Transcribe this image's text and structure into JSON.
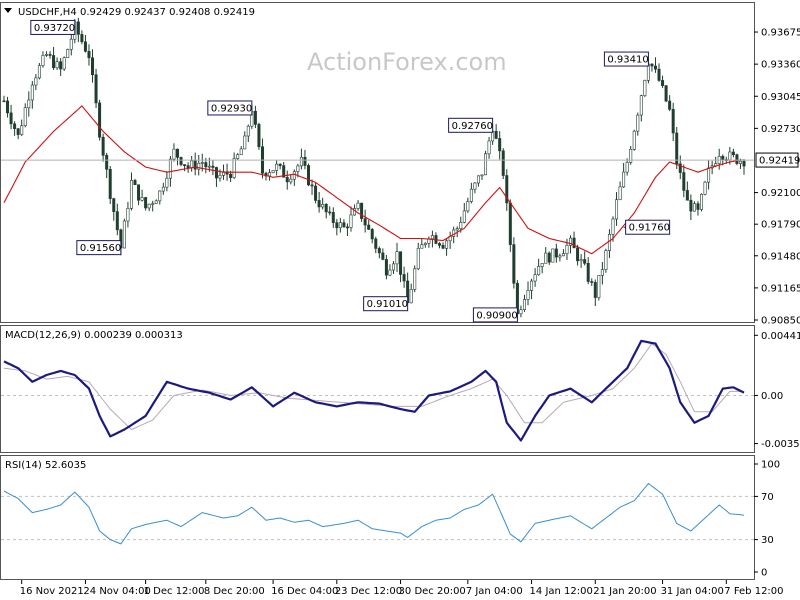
{
  "chart_data": {
    "type": "candlestick",
    "symbol": "USDCHF,H4",
    "ohlc_text": "0.92429 0.92437 0.92408 0.92419",
    "watermark": "ActionForex.com",
    "last_price": 0.92419,
    "last_price_label": "0.92419",
    "price_axis": {
      "range": [
        0.9085,
        0.9395
      ],
      "ticks": [
        {
          "v": 0.93675,
          "label": "0.93675"
        },
        {
          "v": 0.9336,
          "label": "0.93360"
        },
        {
          "v": 0.93045,
          "label": "0.93045"
        },
        {
          "v": 0.9273,
          "label": "0.92730"
        },
        {
          "v": 0.921,
          "label": "0.92100"
        },
        {
          "v": 0.9179,
          "label": "0.91790"
        },
        {
          "v": 0.9148,
          "label": "0.91480"
        },
        {
          "v": 0.91165,
          "label": "0.91165"
        },
        {
          "v": 0.9085,
          "label": "0.90850"
        }
      ]
    },
    "annotations": [
      {
        "label": "0.93720",
        "v": 0.9372,
        "bar": 20,
        "side": "left"
      },
      {
        "label": "0.91560",
        "v": 0.9156,
        "bar": 33,
        "side": "left"
      },
      {
        "label": "0.92930",
        "v": 0.9293,
        "bar": 70,
        "side": "left"
      },
      {
        "label": "0.91010",
        "v": 0.9101,
        "bar": 114,
        "side": "left"
      },
      {
        "label": "0.92760",
        "v": 0.9276,
        "bar": 138,
        "side": "left"
      },
      {
        "label": "0.90900",
        "v": 0.909,
        "bar": 145,
        "side": "left"
      },
      {
        "label": "0.93410",
        "v": 0.9341,
        "bar": 182,
        "side": "left"
      },
      {
        "label": "0.91760",
        "v": 0.9176,
        "bar": 175,
        "side": "right"
      }
    ],
    "price_path": [
      [
        0,
        0.93
      ],
      [
        4,
        0.9265
      ],
      [
        8,
        0.932
      ],
      [
        12,
        0.9345
      ],
      [
        16,
        0.933
      ],
      [
        20,
        0.9372
      ],
      [
        24,
        0.9345
      ],
      [
        27,
        0.927
      ],
      [
        30,
        0.921
      ],
      [
        33,
        0.9156
      ],
      [
        36,
        0.922
      ],
      [
        40,
        0.9195
      ],
      [
        44,
        0.921
      ],
      [
        48,
        0.925
      ],
      [
        52,
        0.9235
      ],
      [
        56,
        0.924
      ],
      [
        60,
        0.9225
      ],
      [
        64,
        0.923
      ],
      [
        68,
        0.926
      ],
      [
        70,
        0.9293
      ],
      [
        73,
        0.923
      ],
      [
        77,
        0.9235
      ],
      [
        80,
        0.9225
      ],
      [
        84,
        0.924
      ],
      [
        88,
        0.9205
      ],
      [
        92,
        0.9185
      ],
      [
        96,
        0.9175
      ],
      [
        100,
        0.9195
      ],
      [
        104,
        0.9165
      ],
      [
        108,
        0.9135
      ],
      [
        111,
        0.915
      ],
      [
        114,
        0.9101
      ],
      [
        117,
        0.915
      ],
      [
        120,
        0.917
      ],
      [
        124,
        0.916
      ],
      [
        128,
        0.9175
      ],
      [
        132,
        0.921
      ],
      [
        135,
        0.923
      ],
      [
        138,
        0.9276
      ],
      [
        141,
        0.923
      ],
      [
        143,
        0.916
      ],
      [
        145,
        0.909
      ],
      [
        148,
        0.912
      ],
      [
        152,
        0.9145
      ],
      [
        156,
        0.915
      ],
      [
        160,
        0.916
      ],
      [
        164,
        0.9135
      ],
      [
        167,
        0.911
      ],
      [
        170,
        0.915
      ],
      [
        173,
        0.92
      ],
      [
        176,
        0.924
      ],
      [
        179,
        0.929
      ],
      [
        182,
        0.9341
      ],
      [
        185,
        0.932
      ],
      [
        188,
        0.929
      ],
      [
        190,
        0.924
      ],
      [
        193,
        0.92
      ],
      [
        196,
        0.919
      ],
      [
        199,
        0.923
      ],
      [
        202,
        0.925
      ],
      [
        205,
        0.9245
      ],
      [
        208,
        0.9242
      ]
    ],
    "ma_path": [
      [
        0,
        0.92
      ],
      [
        6,
        0.924
      ],
      [
        14,
        0.927
      ],
      [
        22,
        0.9295
      ],
      [
        28,
        0.927
      ],
      [
        34,
        0.925
      ],
      [
        40,
        0.9235
      ],
      [
        46,
        0.923
      ],
      [
        54,
        0.9235
      ],
      [
        62,
        0.923
      ],
      [
        70,
        0.923
      ],
      [
        76,
        0.9225
      ],
      [
        82,
        0.9228
      ],
      [
        88,
        0.922
      ],
      [
        94,
        0.9205
      ],
      [
        100,
        0.919
      ],
      [
        106,
        0.9178
      ],
      [
        112,
        0.9165
      ],
      [
        118,
        0.9165
      ],
      [
        124,
        0.9163
      ],
      [
        130,
        0.9175
      ],
      [
        136,
        0.92
      ],
      [
        140,
        0.9215
      ],
      [
        144,
        0.9195
      ],
      [
        148,
        0.9175
      ],
      [
        154,
        0.9165
      ],
      [
        160,
        0.916
      ],
      [
        166,
        0.915
      ],
      [
        172,
        0.9165
      ],
      [
        178,
        0.919
      ],
      [
        184,
        0.9225
      ],
      [
        188,
        0.924
      ],
      [
        192,
        0.9235
      ],
      [
        196,
        0.923
      ],
      [
        200,
        0.9235
      ],
      [
        205,
        0.924
      ],
      [
        208,
        0.9242
      ]
    ],
    "bar_count": 210,
    "macd": {
      "label": "MACD(12,26,9) 0.000239 0.000313",
      "range": [
        -0.004,
        0.0048
      ],
      "ticks": [
        {
          "v": 0.004412,
          "label": "0.004412"
        },
        {
          "v": 0.0,
          "label": "0.00"
        },
        {
          "v": -0.003528,
          "label": "-0.003528"
        }
      ],
      "macd_path": [
        [
          0,
          0.0025
        ],
        [
          4,
          0.002
        ],
        [
          8,
          0.001
        ],
        [
          12,
          0.0015
        ],
        [
          16,
          0.0018
        ],
        [
          20,
          0.0015
        ],
        [
          24,
          0.0005
        ],
        [
          27,
          -0.0015
        ],
        [
          30,
          -0.003
        ],
        [
          34,
          -0.0025
        ],
        [
          40,
          -0.0015
        ],
        [
          46,
          0.001
        ],
        [
          52,
          0.0005
        ],
        [
          58,
          0.0002
        ],
        [
          64,
          -0.0003
        ],
        [
          70,
          0.0006
        ],
        [
          76,
          -0.0008
        ],
        [
          82,
          0.0002
        ],
        [
          88,
          -0.0005
        ],
        [
          94,
          -0.0008
        ],
        [
          100,
          -0.0005
        ],
        [
          106,
          -0.0006
        ],
        [
          112,
          -0.001
        ],
        [
          116,
          -0.0012
        ],
        [
          120,
          0.0
        ],
        [
          126,
          0.0003
        ],
        [
          132,
          0.001
        ],
        [
          136,
          0.0018
        ],
        [
          139,
          0.001
        ],
        [
          142,
          -0.002
        ],
        [
          146,
          -0.0033
        ],
        [
          150,
          -0.0015
        ],
        [
          154,
          0.0
        ],
        [
          160,
          0.0005
        ],
        [
          166,
          -0.0005
        ],
        [
          170,
          0.0005
        ],
        [
          176,
          0.002
        ],
        [
          180,
          0.004
        ],
        [
          184,
          0.0038
        ],
        [
          188,
          0.002
        ],
        [
          191,
          -0.0005
        ],
        [
          195,
          -0.002
        ],
        [
          199,
          -0.0015
        ],
        [
          203,
          0.0005
        ],
        [
          206,
          0.0006
        ],
        [
          209,
          0.0002
        ]
      ],
      "signal_path": [
        [
          0,
          0.002
        ],
        [
          6,
          0.0018
        ],
        [
          12,
          0.0012
        ],
        [
          18,
          0.0014
        ],
        [
          24,
          0.001
        ],
        [
          30,
          -0.001
        ],
        [
          36,
          -0.0025
        ],
        [
          42,
          -0.0018
        ],
        [
          48,
          0.0
        ],
        [
          56,
          0.0004
        ],
        [
          64,
          0.0
        ],
        [
          72,
          0.0002
        ],
        [
          80,
          -0.0002
        ],
        [
          90,
          -0.0004
        ],
        [
          100,
          -0.0006
        ],
        [
          110,
          -0.0008
        ],
        [
          118,
          -0.0008
        ],
        [
          126,
          0.0
        ],
        [
          132,
          0.0005
        ],
        [
          138,
          0.0012
        ],
        [
          142,
          0.0
        ],
        [
          147,
          -0.002
        ],
        [
          152,
          -0.002
        ],
        [
          158,
          -0.0005
        ],
        [
          166,
          0.0
        ],
        [
          172,
          0.0005
        ],
        [
          178,
          0.002
        ],
        [
          183,
          0.0038
        ],
        [
          187,
          0.003
        ],
        [
          191,
          0.001
        ],
        [
          195,
          -0.0012
        ],
        [
          200,
          -0.0012
        ],
        [
          205,
          0.0003
        ],
        [
          209,
          0.0003
        ]
      ]
    },
    "rsi": {
      "label": "RSI(14) 52.6035",
      "range": [
        0,
        100
      ],
      "ticks": [
        {
          "v": 100,
          "label": "100"
        },
        {
          "v": 70,
          "label": "70"
        },
        {
          "v": 30,
          "label": "30"
        },
        {
          "v": 0,
          "label": "0"
        }
      ],
      "levels": [
        70,
        30
      ],
      "path": [
        [
          0,
          75
        ],
        [
          4,
          68
        ],
        [
          8,
          55
        ],
        [
          12,
          58
        ],
        [
          16,
          62
        ],
        [
          20,
          74
        ],
        [
          24,
          60
        ],
        [
          27,
          38
        ],
        [
          30,
          30
        ],
        [
          33,
          26
        ],
        [
          36,
          40
        ],
        [
          40,
          44
        ],
        [
          46,
          48
        ],
        [
          50,
          42
        ],
        [
          56,
          55
        ],
        [
          62,
          50
        ],
        [
          66,
          52
        ],
        [
          70,
          60
        ],
        [
          74,
          48
        ],
        [
          78,
          50
        ],
        [
          82,
          46
        ],
        [
          86,
          48
        ],
        [
          90,
          42
        ],
        [
          96,
          45
        ],
        [
          100,
          48
        ],
        [
          104,
          40
        ],
        [
          108,
          38
        ],
        [
          112,
          36
        ],
        [
          114,
          32
        ],
        [
          118,
          42
        ],
        [
          122,
          48
        ],
        [
          126,
          50
        ],
        [
          130,
          58
        ],
        [
          134,
          62
        ],
        [
          138,
          72
        ],
        [
          141,
          50
        ],
        [
          143,
          35
        ],
        [
          146,
          28
        ],
        [
          150,
          45
        ],
        [
          154,
          48
        ],
        [
          160,
          52
        ],
        [
          166,
          40
        ],
        [
          170,
          50
        ],
        [
          174,
          60
        ],
        [
          178,
          66
        ],
        [
          182,
          82
        ],
        [
          186,
          72
        ],
        [
          190,
          45
        ],
        [
          194,
          38
        ],
        [
          198,
          50
        ],
        [
          202,
          62
        ],
        [
          205,
          54
        ],
        [
          209,
          52.6
        ]
      ]
    },
    "x_labels": [
      {
        "bar": 5,
        "label": "16 Nov 2021"
      },
      {
        "bar": 23,
        "label": "24 Nov 04:00"
      },
      {
        "bar": 40,
        "label": "1 Dec 12:00"
      },
      {
        "bar": 57,
        "label": "8 Dec 20:00"
      },
      {
        "bar": 76,
        "label": "16 Dec 04:00"
      },
      {
        "bar": 94,
        "label": "23 Dec 12:00"
      },
      {
        "bar": 112,
        "label": "30 Dec 20:00"
      },
      {
        "bar": 131,
        "label": "7 Jan 04:00"
      },
      {
        "bar": 149,
        "label": "14 Jan 12:00"
      },
      {
        "bar": 167,
        "label": "21 Jan 20:00"
      },
      {
        "bar": 186,
        "label": "31 Jan 04:00"
      },
      {
        "bar": 204,
        "label": "7 Feb 12:00"
      }
    ],
    "colors": {
      "candle": "#1f3e2f",
      "ma": "#d01010",
      "macd": "#1a1a80",
      "signal": "#b8a8b8",
      "rsi": "#3a8fd0",
      "grid": "#c0c0c0",
      "box_border": "#1a1a60"
    }
  }
}
